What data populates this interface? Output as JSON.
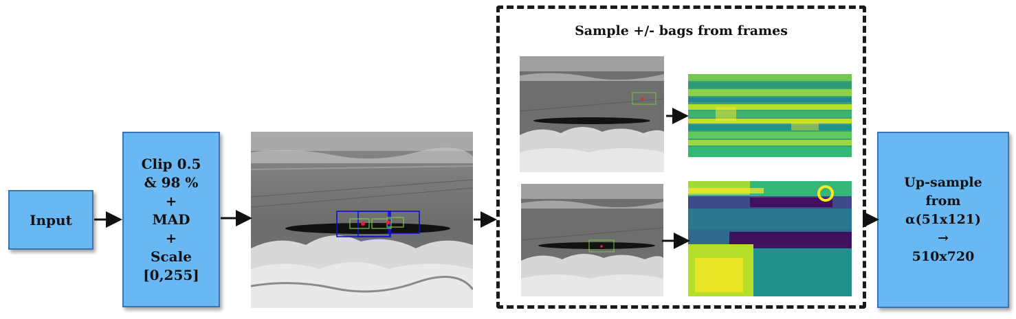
{
  "input_box": {
    "label": "Input"
  },
  "preprocess_box": {
    "lines": [
      "Clip 0.5",
      "& 98 %",
      "+",
      "MAD",
      "+",
      "Scale",
      "[0,255]"
    ]
  },
  "sampling_panel": {
    "title": "Sample +/- bags from frames"
  },
  "upsample_box": {
    "lines": [
      "Up-sample",
      "from",
      "α(51x121)",
      "→",
      "510x720"
    ]
  },
  "colors": {
    "box_fill": "#69b8f3",
    "box_border": "#3a73b2",
    "arrow": "#111111",
    "bbox_blue": "#1010d0",
    "bbox_green": "#7ac943",
    "center_dot": "#ff1a1a"
  },
  "images": [
    {
      "name": "grayscale-frame-main",
      "description_icon": "infrared-sea-scene"
    },
    {
      "name": "grayscale-frame-top",
      "description_icon": "infrared-sea-scene"
    },
    {
      "name": "grayscale-frame-bottom",
      "description_icon": "infrared-sea-scene"
    },
    {
      "name": "feature-map-top",
      "description_icon": "viridis-heatmap"
    },
    {
      "name": "feature-map-bottom",
      "description_icon": "viridis-heatmap"
    }
  ]
}
